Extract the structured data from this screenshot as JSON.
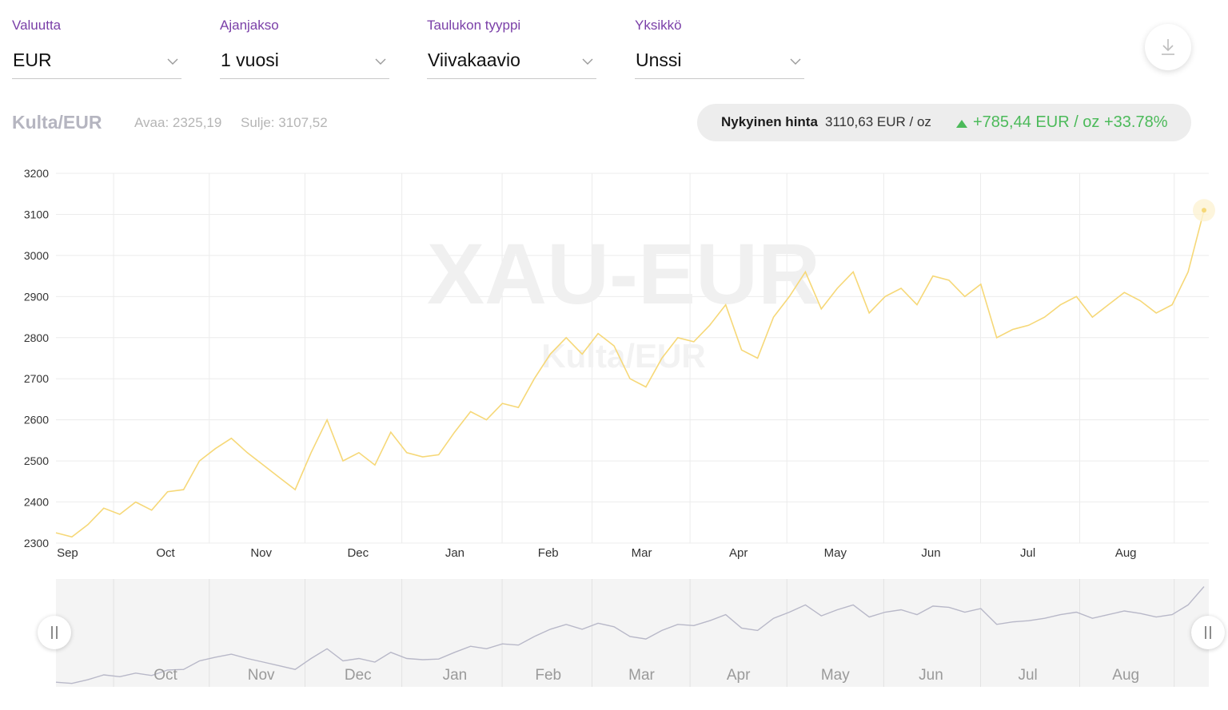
{
  "selectors": [
    {
      "label": "Valuutta",
      "value": "EUR"
    },
    {
      "label": "Ajanjakso",
      "value": "1 vuosi"
    },
    {
      "label": "Taulukon tyyppi",
      "value": "Viivakaavio"
    },
    {
      "label": "Yksikkö",
      "value": "Unssi"
    }
  ],
  "header": {
    "title": "Kulta/EUR",
    "open": "Avaa: 2325,19",
    "close": "Sulje: 3107,52"
  },
  "price": {
    "label": "Nykyinen hinta",
    "value": "3110,63 EUR / oz",
    "change": "+785,44 EUR / oz +33.78%"
  },
  "watermark": {
    "main": "XAU-EUR",
    "sub": "Kulta/EUR"
  },
  "icons": {
    "download": "download-icon",
    "chevron": "chevron-down-icon",
    "handle": "drag-handle-icon"
  },
  "colors": {
    "accent": "#7a3fa8",
    "line": "#f6d878",
    "positive": "#4cba5a",
    "navigator_line": "#b8b8c8"
  },
  "chart_data": {
    "type": "line",
    "title": "Kulta/EUR",
    "ylim": [
      2300,
      3200
    ],
    "yticks": [
      2300,
      2400,
      2500,
      2600,
      2700,
      2800,
      2900,
      3000,
      3100,
      3200
    ],
    "xtick_labels": [
      "Sep",
      "Oct",
      "Nov",
      "Dec",
      "Jan",
      "Feb",
      "Mar",
      "Apr",
      "May",
      "Jun",
      "Jul",
      "Aug"
    ],
    "navigator_labels": [
      "Oct",
      "Nov",
      "Dec",
      "Jan",
      "Feb",
      "Mar",
      "Apr",
      "May",
      "Jun",
      "Jul",
      "Aug"
    ],
    "grid": true,
    "series": [
      {
        "x": [
          "Sep 1",
          "Sep 5",
          "Sep 10",
          "Sep 15",
          "Sep 20",
          "Sep 26",
          "Oct 1",
          "Oct 5",
          "Oct 10",
          "Oct 15",
          "Oct 20",
          "Oct 25",
          "Oct 31",
          "Nov 5",
          "Nov 10",
          "Nov 15",
          "Nov 20",
          "Nov 25",
          "Nov 30",
          "Dec 5",
          "Dec 10",
          "Dec 15",
          "Dec 20",
          "Dec 25",
          "Dec 30",
          "Jan 5",
          "Jan 10",
          "Jan 15",
          "Jan 20",
          "Jan 25",
          "Jan 30",
          "Feb 5",
          "Feb 10",
          "Feb 15",
          "Feb 20",
          "Feb 25",
          "Mar 1",
          "Mar 5",
          "Mar 10",
          "Mar 15",
          "Mar 20",
          "Mar 25",
          "Mar 30",
          "Apr 5",
          "Apr 10",
          "Apr 15",
          "Apr 20",
          "Apr 25",
          "Apr 30",
          "May 5",
          "May 10",
          "May 15",
          "May 20",
          "May 25",
          "May 30",
          "Jun 5",
          "Jun 10",
          "Jun 15",
          "Jun 20",
          "Jun 25",
          "Jun 30",
          "Jul 5",
          "Jul 10",
          "Jul 15",
          "Jul 20",
          "Jul 25",
          "Jul 30",
          "Aug 5",
          "Aug 10",
          "Aug 15",
          "Aug 20",
          "Aug 25",
          "Aug 30"
        ],
        "values": [
          2325,
          2315,
          2345,
          2385,
          2370,
          2400,
          2380,
          2425,
          2430,
          2500,
          2530,
          2555,
          2520,
          2490,
          2460,
          2430,
          2520,
          2600,
          2500,
          2520,
          2490,
          2570,
          2520,
          2510,
          2515,
          2570,
          2620,
          2600,
          2640,
          2630,
          2700,
          2760,
          2800,
          2760,
          2810,
          2780,
          2700,
          2680,
          2750,
          2800,
          2790,
          2830,
          2880,
          2770,
          2750,
          2850,
          2900,
          2960,
          2870,
          2920,
          2960,
          2860,
          2900,
          2920,
          2880,
          2950,
          2940,
          2900,
          2930,
          2800,
          2820,
          2830,
          2850,
          2880,
          2900,
          2850,
          2880,
          2910,
          2890,
          2860,
          2880,
          2960,
          3110
        ]
      }
    ]
  }
}
